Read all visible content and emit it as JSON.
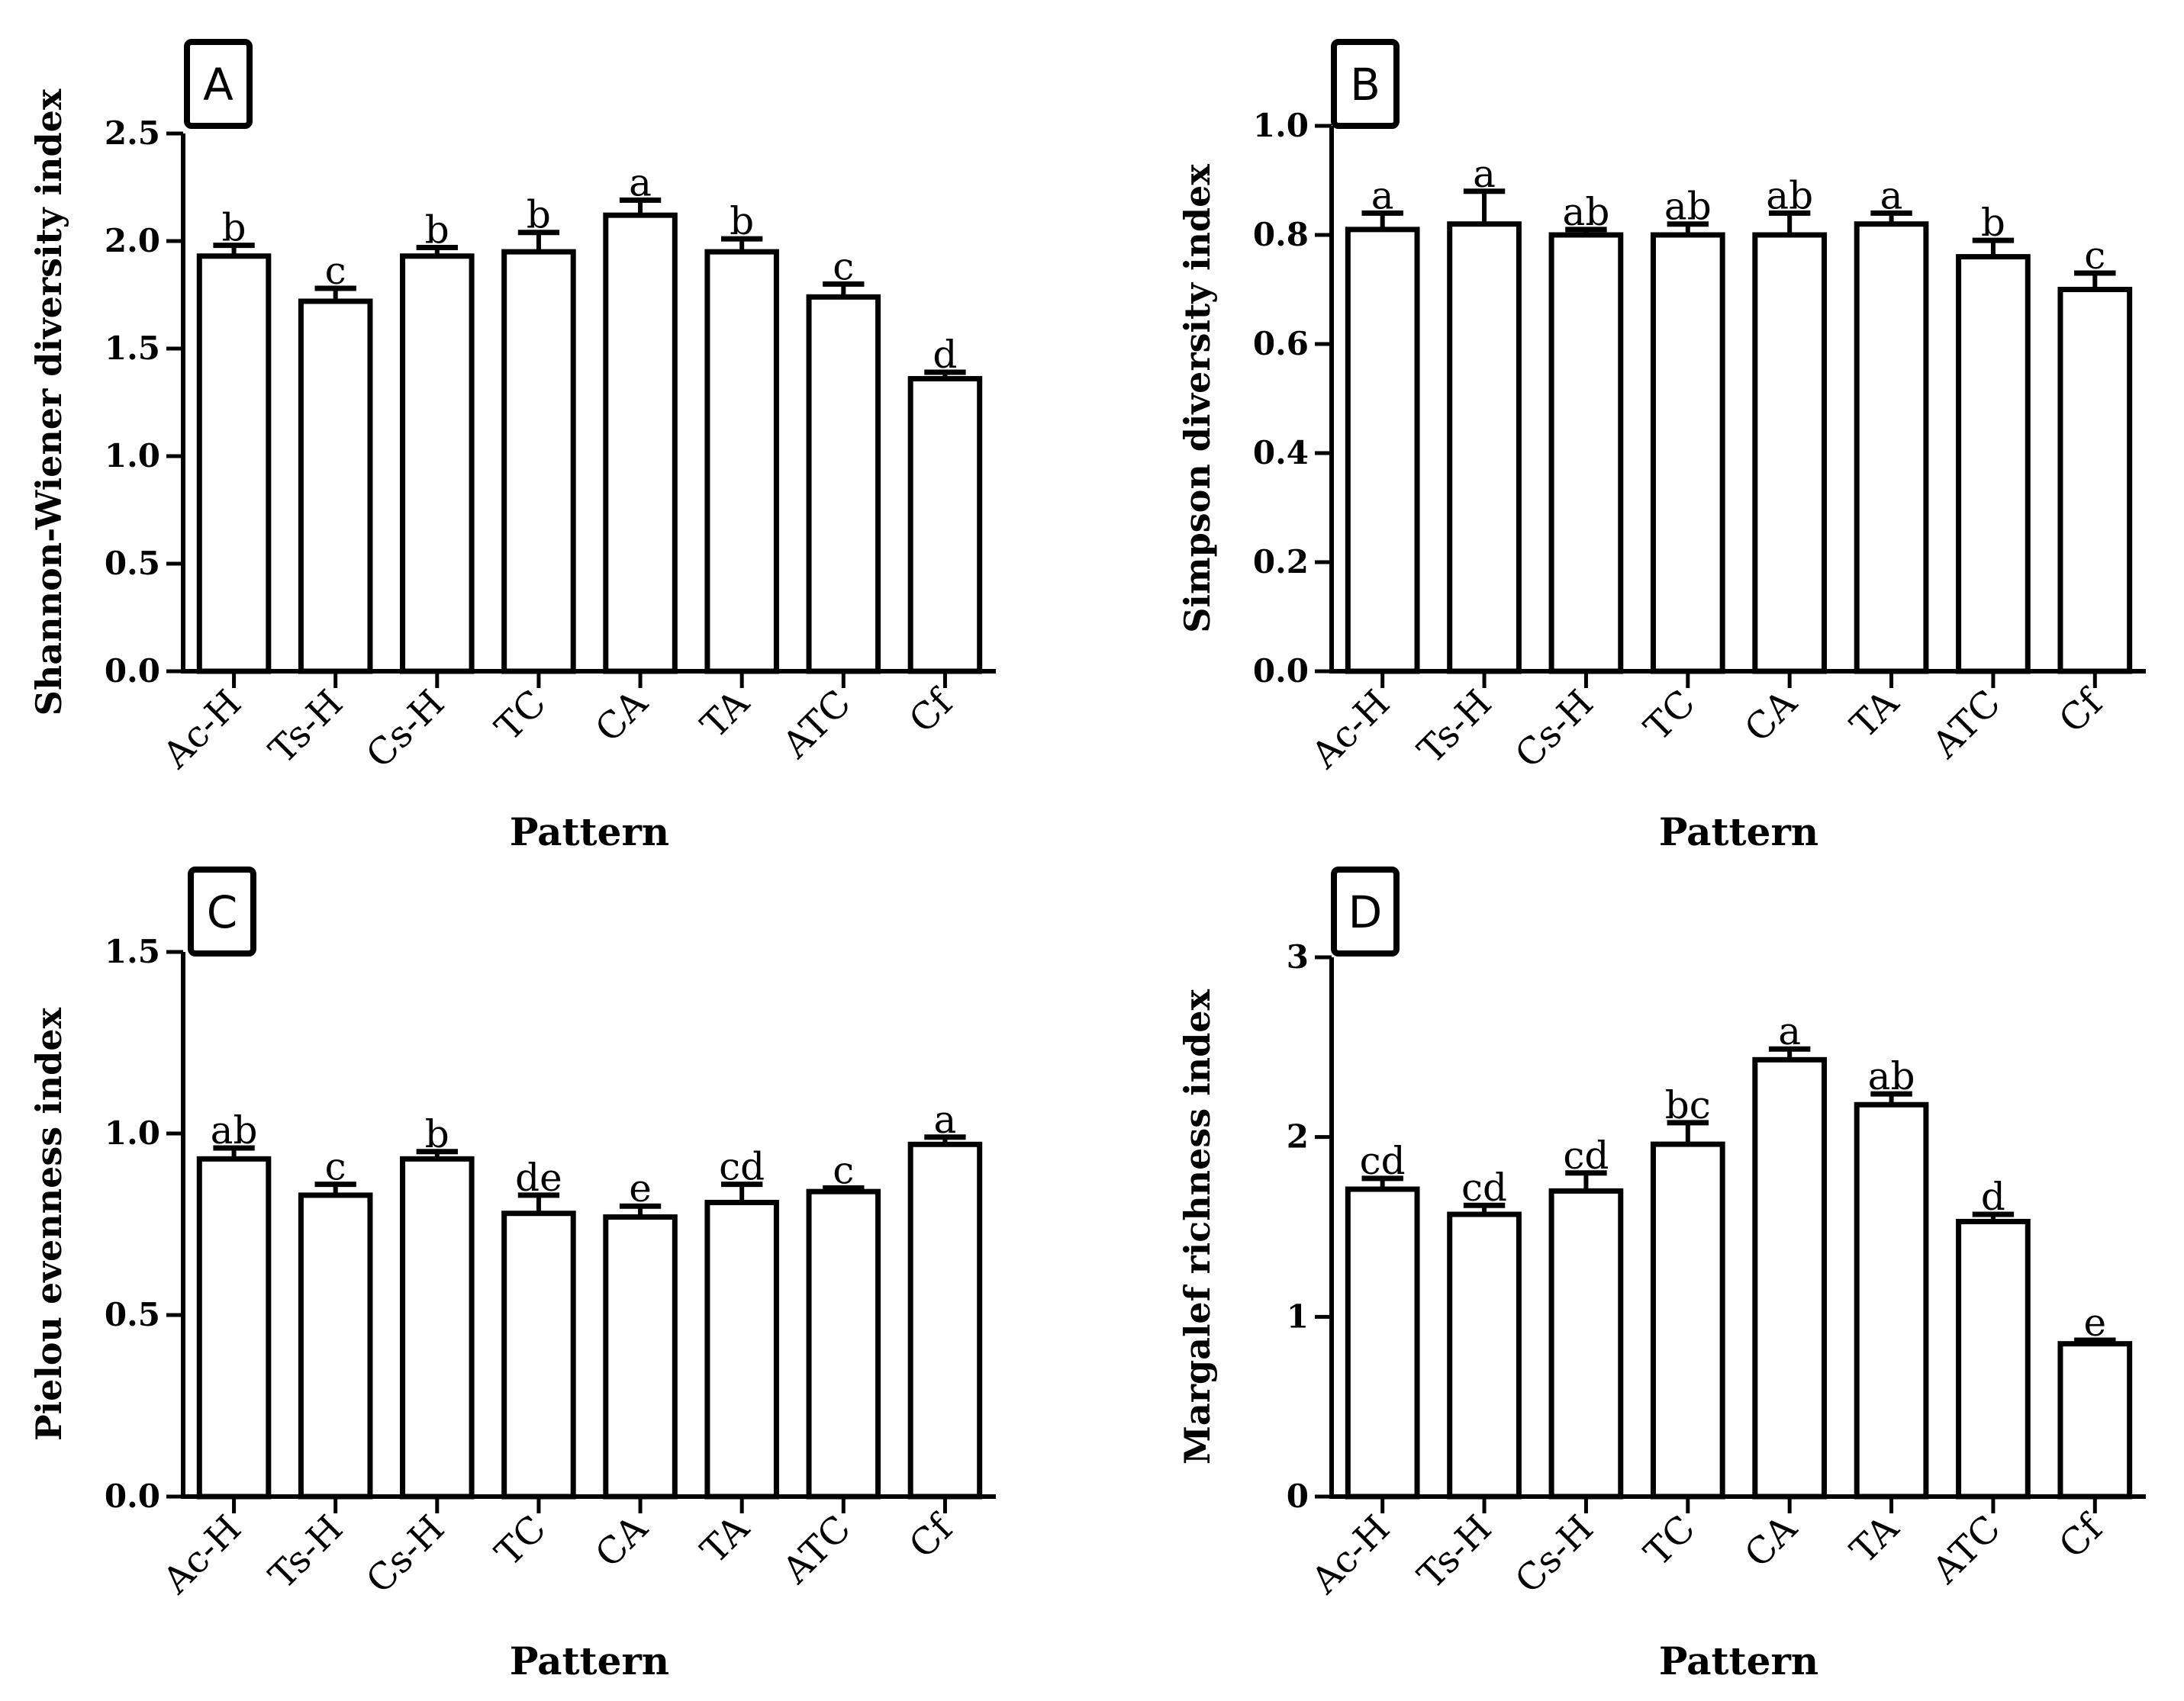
{
  "chart_data": [
    {
      "panel": "A",
      "type": "bar",
      "xlabel": "Pattern",
      "ylabel": "Shannon-Wiener diversity index",
      "ylim": [
        0,
        2.5
      ],
      "ticks": [
        "0.0",
        "0.5",
        "1.0",
        "1.5",
        "2.0",
        "2.5"
      ],
      "categories": [
        "Ac-H",
        "Ts-H",
        "Cs-H",
        "TC",
        "CA",
        "TA",
        "ATC",
        "Cf"
      ],
      "values": [
        1.93,
        1.72,
        1.93,
        1.95,
        2.12,
        1.95,
        1.74,
        1.36
      ],
      "errors": [
        0.05,
        0.06,
        0.04,
        0.09,
        0.07,
        0.06,
        0.06,
        0.03
      ],
      "letters": [
        "b",
        "c",
        "b",
        "b",
        "a",
        "b",
        "c",
        "d"
      ]
    },
    {
      "panel": "B",
      "type": "bar",
      "xlabel": "Pattern",
      "ylabel": "Simpson diversity index",
      "ylim": [
        0,
        1.0
      ],
      "ticks": [
        "0.0",
        "0.2",
        "0.4",
        "0.6",
        "0.8",
        "1.0"
      ],
      "categories": [
        "Ac-H",
        "Ts-H",
        "Cs-H",
        "TC",
        "CA",
        "TA",
        "ATC",
        "Cf"
      ],
      "values": [
        0.81,
        0.82,
        0.8,
        0.8,
        0.8,
        0.82,
        0.76,
        0.7
      ],
      "errors": [
        0.03,
        0.06,
        0.01,
        0.02,
        0.04,
        0.02,
        0.03,
        0.03
      ],
      "letters": [
        "a",
        "a",
        "ab",
        "ab",
        "ab",
        "a",
        "b",
        "c"
      ]
    },
    {
      "panel": "C",
      "type": "bar",
      "xlabel": "Pattern",
      "ylabel": "Pielou evenness index",
      "ylim": [
        0,
        1.5
      ],
      "ticks": [
        "0.0",
        "0.5",
        "1.0",
        "1.5"
      ],
      "categories": [
        "Ac-H",
        "Ts-H",
        "Cs-H",
        "TC",
        "CA",
        "TA",
        "ATC",
        "Cf"
      ],
      "values": [
        0.93,
        0.83,
        0.93,
        0.78,
        0.77,
        0.81,
        0.84,
        0.97
      ],
      "errors": [
        0.03,
        0.03,
        0.02,
        0.05,
        0.03,
        0.05,
        0.01,
        0.02
      ],
      "letters": [
        "ab",
        "c",
        "b",
        "de",
        "e",
        "cd",
        "c",
        "a"
      ]
    },
    {
      "panel": "D",
      "type": "bar",
      "xlabel": "Pattern",
      "ylabel": "Margalef richness index",
      "ylim": [
        0,
        3
      ],
      "ticks": [
        "0",
        "1",
        "2",
        "3"
      ],
      "categories": [
        "Ac-H",
        "Ts-H",
        "Cs-H",
        "TC",
        "CA",
        "TA",
        "ATC",
        "Cf"
      ],
      "values": [
        1.71,
        1.57,
        1.7,
        1.96,
        2.43,
        2.18,
        1.53,
        0.85
      ],
      "errors": [
        0.06,
        0.05,
        0.1,
        0.12,
        0.06,
        0.06,
        0.04,
        0.02
      ],
      "letters": [
        "cd",
        "cd",
        "cd",
        "bc",
        "a",
        "ab",
        "d",
        "e"
      ]
    }
  ]
}
